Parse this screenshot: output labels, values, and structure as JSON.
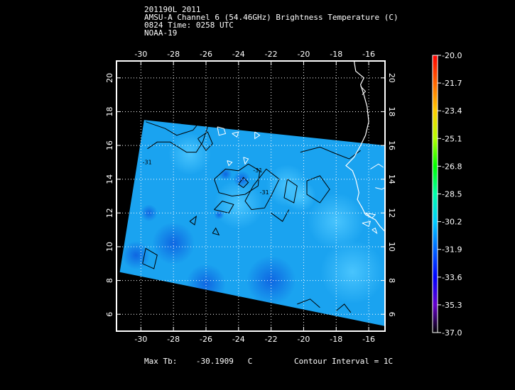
{
  "header": {
    "line1": "201190L 2011",
    "line2": "AMSU-A Channel 6 (54.46GHz) Brightness Temperature (C)",
    "line3": "0824 Time: 0258 UTC",
    "line4": "NOAA-19"
  },
  "footer": {
    "max_label": "Max Tb:",
    "max_value": "-30.1909",
    "max_unit": "C",
    "contour": "Contour Interval = 1C"
  },
  "colors": {
    "field": "#1aa3f0",
    "field_light": "#33b8f8",
    "field_dark": "#1478e6",
    "coast": "#ffffff",
    "contour": "#000000",
    "grid": "#ffffff"
  },
  "chart_data": {
    "type": "heatmap",
    "xlim": [
      -31.5,
      -15
    ],
    "ylim": [
      5,
      21
    ],
    "xticks": [
      -30,
      -28,
      -26,
      -24,
      -22,
      -20,
      -18,
      -16
    ],
    "xtick_labels": [
      "-30",
      "-28",
      "-26",
      "-24",
      "-22",
      "-20",
      "-18",
      "-16"
    ],
    "yticks": [
      6,
      8,
      10,
      12,
      14,
      16,
      18,
      20
    ],
    "ytick_labels": [
      "6",
      "8",
      "10",
      "12",
      "14",
      "16",
      "18",
      "20"
    ],
    "grid": true,
    "swath_corners": [
      [
        -29.8,
        17.5
      ],
      [
        -15,
        16.0
      ],
      [
        -15,
        5.3
      ],
      [
        -31.3,
        8.5
      ]
    ],
    "max_tb": -30.1909,
    "contour_interval": 1,
    "contour_labels": [
      {
        "text": "-31",
        "x": -29.9,
        "y": 14.9
      },
      {
        "text": "-31",
        "x": -23.1,
        "y": 14.4
      },
      {
        "text": "-31",
        "x": -22.7,
        "y": 13.1
      }
    ],
    "colorbar": {
      "ticks": [
        "-20.0",
        "-21.7",
        "-23.4",
        "-25.1",
        "-26.8",
        "-28.5",
        "-30.2",
        "-31.9",
        "-33.6",
        "-35.3",
        "-37.0"
      ],
      "stops": [
        "#ff0000",
        "#ff6600",
        "#ffcc00",
        "#b4ff00",
        "#00ff00",
        "#00ffaa",
        "#00ccff",
        "#0066ff",
        "#0000ff",
        "#6600cc",
        "#000000"
      ]
    }
  }
}
